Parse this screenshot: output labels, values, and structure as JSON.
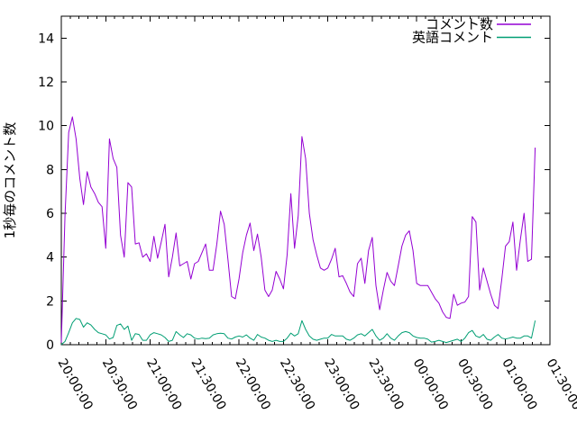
{
  "chart_data": {
    "type": "line",
    "title": "",
    "xlabel": "",
    "ylabel": "1秒毎のコメント数",
    "legend_position": "top-right-inside",
    "grid": false,
    "background_color": "#ffffff",
    "axis_color": "#000000",
    "ylim": [
      0,
      15
    ],
    "yticks": [
      0,
      2,
      4,
      6,
      8,
      10,
      12,
      14
    ],
    "ytick_labels": [
      "0",
      "2",
      "4",
      "6",
      "8",
      "10",
      "12",
      "14"
    ],
    "x_start": "20:00:00",
    "x_end_axis": "01:30:00",
    "x_step_seconds": 150,
    "x_total_minutes": 330,
    "x_major_tick_minutes": 30,
    "x_minor_tick_minutes": 6,
    "x_tick_labels": [
      "20:00:00",
      "20:30:00",
      "21:00:00",
      "21:30:00",
      "22:00:00",
      "22:30:00",
      "23:00:00",
      "23:30:00",
      "00:00:00",
      "00:30:00",
      "01:00:00",
      "01:30:00"
    ],
    "series": [
      {
        "name": "コメント数",
        "color": "#9400d3",
        "values": [
          0.1,
          5.9,
          9.7,
          10.4,
          9.4,
          7.6,
          6.4,
          7.9,
          7.2,
          6.9,
          6.5,
          6.3,
          4.4,
          9.4,
          8.5,
          8.1,
          5.0,
          4.0,
          7.4,
          7.2,
          4.6,
          4.65,
          4.0,
          4.15,
          3.8,
          4.95,
          3.95,
          4.7,
          5.5,
          3.1,
          4.0,
          5.1,
          3.6,
          3.7,
          3.8,
          3.0,
          3.7,
          3.8,
          4.2,
          4.6,
          3.4,
          3.4,
          4.6,
          6.1,
          5.5,
          3.9,
          2.2,
          2.1,
          3.0,
          4.2,
          5.0,
          5.55,
          4.3,
          5.05,
          4.0,
          2.5,
          2.2,
          2.5,
          3.35,
          3.0,
          2.55,
          4.1,
          6.9,
          4.4,
          5.9,
          9.5,
          8.5,
          6.0,
          4.8,
          4.1,
          3.5,
          3.4,
          3.5,
          3.9,
          4.4,
          3.1,
          3.15,
          2.8,
          2.4,
          2.2,
          3.7,
          3.95,
          2.8,
          4.3,
          4.9,
          2.7,
          1.6,
          2.5,
          3.3,
          2.9,
          2.7,
          3.6,
          4.5,
          5.0,
          5.2,
          4.3,
          2.8,
          2.7,
          2.7,
          2.7,
          2.4,
          2.1,
          1.9,
          1.5,
          1.25,
          1.2,
          2.3,
          1.8,
          1.9,
          1.95,
          2.2,
          5.85,
          5.6,
          2.5,
          3.5,
          2.9,
          2.3,
          1.8,
          1.65,
          3.0,
          4.5,
          4.7,
          5.6,
          3.4,
          4.8,
          6.0,
          3.8,
          3.9,
          9.0
        ]
      },
      {
        "name": "英語コメント",
        "color": "#009e73",
        "values": [
          0.0,
          0.15,
          0.55,
          1.0,
          1.2,
          1.15,
          0.8,
          1.0,
          0.9,
          0.7,
          0.55,
          0.5,
          0.45,
          0.26,
          0.33,
          0.88,
          0.95,
          0.7,
          0.85,
          0.2,
          0.5,
          0.47,
          0.2,
          0.2,
          0.45,
          0.55,
          0.5,
          0.45,
          0.33,
          0.15,
          0.2,
          0.6,
          0.45,
          0.33,
          0.5,
          0.45,
          0.3,
          0.26,
          0.3,
          0.28,
          0.3,
          0.45,
          0.5,
          0.52,
          0.5,
          0.3,
          0.26,
          0.35,
          0.4,
          0.35,
          0.45,
          0.3,
          0.2,
          0.47,
          0.35,
          0.3,
          0.2,
          0.15,
          0.2,
          0.15,
          0.15,
          0.3,
          0.53,
          0.4,
          0.5,
          1.1,
          0.7,
          0.4,
          0.25,
          0.2,
          0.25,
          0.3,
          0.3,
          0.47,
          0.4,
          0.4,
          0.4,
          0.25,
          0.2,
          0.3,
          0.45,
          0.5,
          0.4,
          0.55,
          0.7,
          0.4,
          0.2,
          0.3,
          0.5,
          0.3,
          0.2,
          0.4,
          0.55,
          0.6,
          0.55,
          0.4,
          0.33,
          0.3,
          0.3,
          0.25,
          0.12,
          0.15,
          0.2,
          0.15,
          0.1,
          0.15,
          0.2,
          0.25,
          0.15,
          0.3,
          0.55,
          0.65,
          0.4,
          0.33,
          0.47,
          0.25,
          0.2,
          0.35,
          0.47,
          0.3,
          0.26,
          0.3,
          0.35,
          0.3,
          0.3,
          0.4,
          0.4,
          0.3,
          1.1
        ]
      }
    ]
  }
}
